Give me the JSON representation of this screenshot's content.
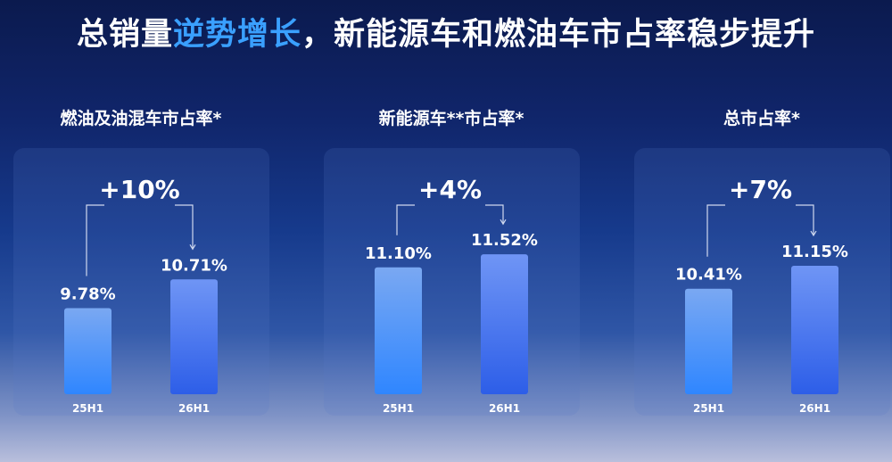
{
  "header": {
    "title_part1": "总销量",
    "title_highlight": "逆势增长",
    "title_part2": "，新能源车和燃油车市占率稳步提升"
  },
  "colors": {
    "highlight": "#3aa0ff",
    "bar_top": "#7aa8f2",
    "bar_bottom": "#2f86ff",
    "connector": "#cfd8ee"
  },
  "chart_data": [
    {
      "type": "bar",
      "title": "燃油及油混车市占率*",
      "categories": [
        "25H1",
        "26H1"
      ],
      "values": [
        9.78,
        10.71
      ],
      "value_labels": [
        "9.78%",
        "10.71%"
      ],
      "change_label": "+10%",
      "ylim": [
        0,
        12
      ],
      "grid": false
    },
    {
      "type": "bar",
      "title": "新能源车**市占率*",
      "categories": [
        "25H1",
        "26H1"
      ],
      "values": [
        11.1,
        11.52
      ],
      "value_labels": [
        "11.10%",
        "11.52%"
      ],
      "change_label": "+4%",
      "ylim": [
        0,
        12
      ],
      "grid": false
    },
    {
      "type": "bar",
      "title": "总市占率*",
      "categories": [
        "25H1",
        "26H1"
      ],
      "values": [
        10.41,
        11.15
      ],
      "value_labels": [
        "10.41%",
        "11.15%"
      ],
      "change_label": "+7%",
      "ylim": [
        0,
        12
      ],
      "grid": false
    }
  ]
}
